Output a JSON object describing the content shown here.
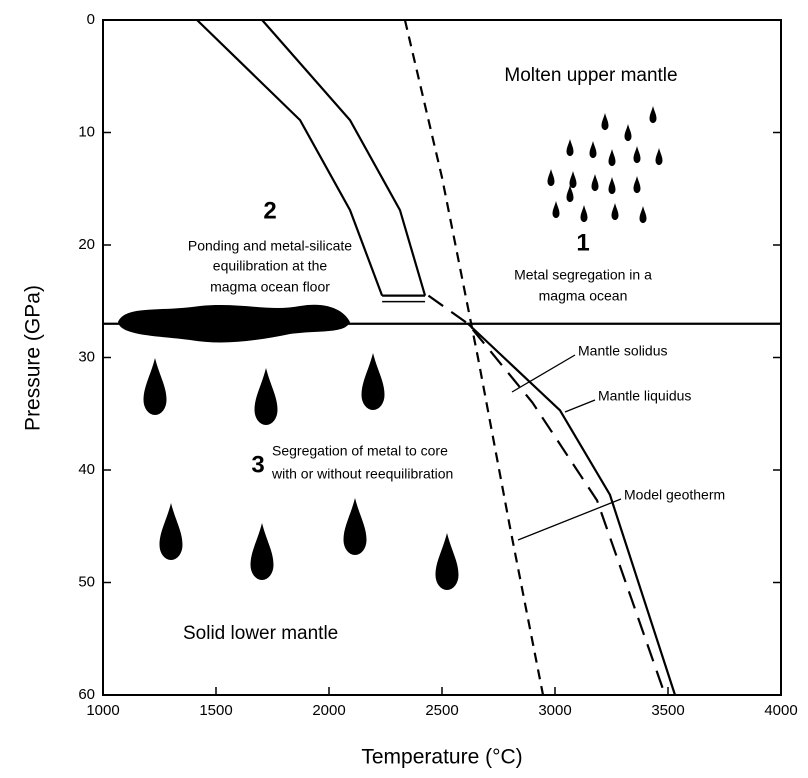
{
  "chart_data": {
    "type": "line",
    "xlabel": "Temperature (°C)",
    "ylabel": "Pressure (GPa)",
    "xlim": [
      1000,
      4000
    ],
    "ylim": [
      0,
      60
    ],
    "y_inverted": true,
    "xticks": [
      1000,
      1500,
      2000,
      2500,
      3000,
      3500,
      4000
    ],
    "yticks": [
      0,
      10,
      20,
      30,
      40,
      50,
      60
    ],
    "series": [
      {
        "name": "Mantle solidus",
        "color": "#000000",
        "dash": "solid",
        "x": [
          2615,
          3022,
          3243,
          3531
        ],
        "values": [
          27,
          34.7,
          42.2,
          60
        ]
      },
      {
        "name": "Mantle liquidus",
        "color": "#000000",
        "dash": "long",
        "x": [
          2440,
          2615,
          2900,
          3186,
          3487
        ],
        "values": [
          24.5,
          27,
          34,
          42.7,
          60
        ]
      },
      {
        "name": "Model geotherm",
        "color": "#000000",
        "dash": "short",
        "x": [
          2336,
          2500,
          2659,
          2800,
          2947
        ],
        "values": [
          0,
          14,
          30,
          45,
          60
        ]
      },
      {
        "color": "#000000",
        "dash": "solid",
        "x": [
          1416,
          1872,
          2093,
          2235
        ],
        "values": [
          0,
          8.9,
          16.9,
          24.5
        ]
      },
      {
        "color": "#000000",
        "dash": "solid",
        "x": [
          1704,
          2093,
          2314,
          2425
        ],
        "values": [
          0,
          8.9,
          16.9,
          24.5
        ]
      },
      {
        "color": "#000000",
        "dash": "solid",
        "x": [
          1000,
          4000
        ],
        "values": [
          27,
          27
        ]
      }
    ],
    "annotations": [
      "Molten upper mantle",
      "1",
      "Metal segregation in a",
      "magma ocean",
      "2",
      "Ponding and metal-silicate",
      "equilibration at the",
      "magma ocean floor",
      "3",
      "Segregation of metal to core",
      "with or without reequilibration",
      "Solid lower mantle"
    ]
  }
}
